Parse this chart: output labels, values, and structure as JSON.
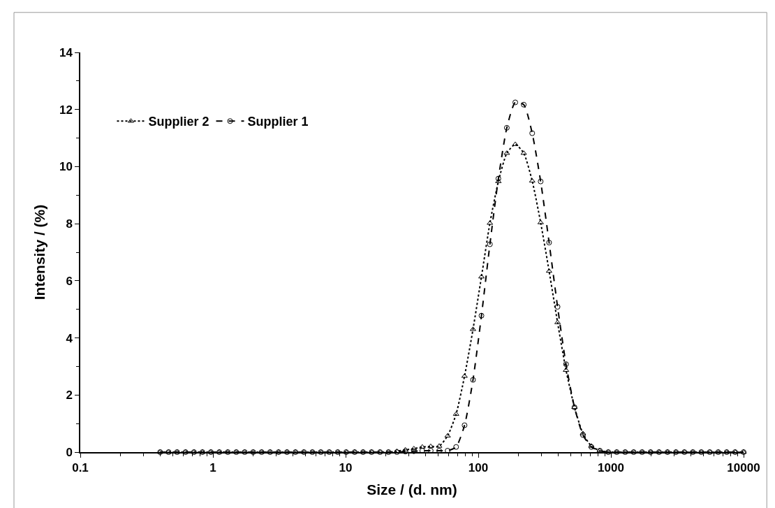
{
  "chart_data": {
    "type": "line",
    "xlabel": "Size / (d. nm)",
    "ylabel": "Intensity / (%)",
    "x": [
      0.4,
      0.4632,
      0.5365,
      0.6213,
      0.7195,
      0.8332,
      0.9649,
      1.117,
      1.294,
      1.499,
      1.736,
      2.01,
      2.328,
      2.696,
      3.122,
      3.615,
      4.187,
      4.849,
      5.615,
      6.503,
      7.531,
      8.721,
      10.1,
      11.7,
      13.54,
      15.69,
      18.17,
      21.04,
      24.36,
      28.21,
      32.67,
      37.84,
      43.82,
      50.75,
      58.77,
      68.06,
      78.82,
      91.28,
      105.7,
      122.4,
      141.8,
      164.2,
      190.1,
      220.2,
      255,
      295.3,
      342,
      396.1,
      458.7,
      531.2,
      615.1,
      712.4,
      825,
      955.4,
      1106,
      1281,
      1484,
      1718,
      1990,
      2305,
      2669,
      3091,
      3580,
      4145,
      4801,
      5560,
      6439,
      7456,
      8635,
      10000
    ],
    "series": [
      {
        "name": "Supplier 2",
        "color": "#000000",
        "marker": "triangle",
        "line_style": "dotted",
        "values": [
          0,
          0,
          0,
          0,
          0,
          0,
          0,
          0,
          0,
          0,
          0,
          0,
          0,
          0,
          0,
          0,
          0,
          0,
          0,
          0,
          0,
          0,
          0,
          0,
          0,
          0,
          0,
          0,
          0.03,
          0.08,
          0.12,
          0.18,
          0.2,
          0.21,
          0.57,
          1.33,
          2.66,
          4.3,
          6.14,
          8.02,
          9.48,
          10.47,
          10.78,
          10.47,
          9.5,
          8.04,
          6.34,
          4.54,
          2.87,
          1.57,
          0.65,
          0.21,
          0.05,
          0,
          0,
          0,
          0,
          0,
          0,
          0,
          0,
          0,
          0,
          0,
          0,
          0,
          0,
          0,
          0,
          0
        ]
      },
      {
        "name": "Supplier 1",
        "color": "#000000",
        "marker": "circle",
        "line_style": "dashed",
        "values": [
          0,
          0,
          0,
          0,
          0,
          0,
          0,
          0,
          0,
          0,
          0,
          0,
          0,
          0,
          0,
          0,
          0,
          0,
          0,
          0,
          0,
          0,
          0,
          0,
          0,
          0,
          0,
          0,
          0,
          0.02,
          0.03,
          0.05,
          0.05,
          0.05,
          0.05,
          0.18,
          0.94,
          2.53,
          4.78,
          7.28,
          9.58,
          11.36,
          12.25,
          12.17,
          11.17,
          9.48,
          7.34,
          5.09,
          3.08,
          1.57,
          0.6,
          0.18,
          0.05,
          0,
          0,
          0,
          0,
          0,
          0,
          0,
          0,
          0,
          0,
          0,
          0,
          0,
          0,
          0,
          0,
          0
        ]
      }
    ],
    "log": "x",
    "xlim": [
      0.1,
      10000
    ],
    "xticks": [
      0.1,
      1,
      10,
      100,
      1000,
      10000
    ],
    "ylim": [
      0,
      14
    ],
    "yticks": [
      0,
      2,
      4,
      6,
      8,
      10,
      12,
      14
    ],
    "legend": "top left"
  }
}
